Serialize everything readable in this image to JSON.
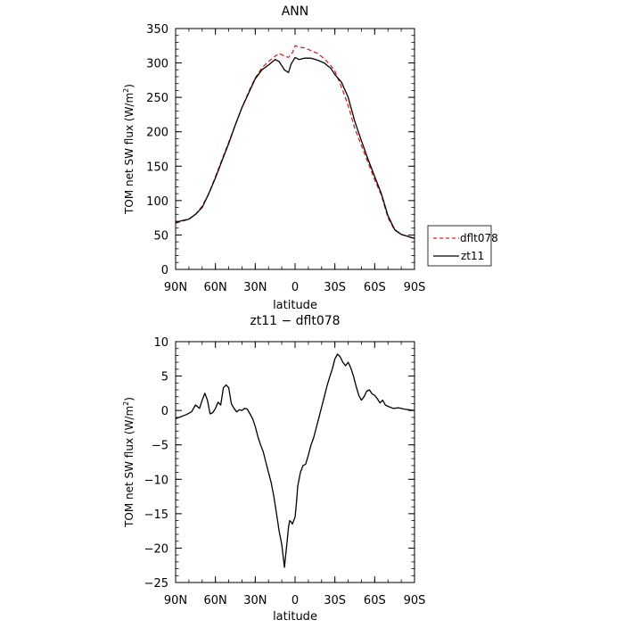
{
  "chart_data": [
    {
      "type": "line",
      "title": "ANN",
      "xlabel": "latitude",
      "ylabel": "TOM net SW flux (W/m",
      "ylabel_sup": "2",
      "ylabel_close": ")",
      "x_ticks": [
        -90,
        -60,
        -30,
        0,
        30,
        60,
        90
      ],
      "x_tick_labels": [
        "90N",
        "60N",
        "30N",
        "0",
        "30S",
        "60S",
        "90S"
      ],
      "ylim": [
        0,
        350
      ],
      "y_ticks": [
        0,
        50,
        100,
        150,
        200,
        250,
        300,
        350
      ],
      "y_tick_labels": [
        "0",
        "50",
        "100",
        "150",
        "200",
        "250",
        "300",
        "350"
      ],
      "legend_position": "right",
      "series": [
        {
          "name": "dflt078",
          "color": "#dd2222",
          "dash": "dashed",
          "x": [
            -90,
            -85,
            -80,
            -75,
            -70,
            -65,
            -60,
            -55,
            -50,
            -45,
            -40,
            -35,
            -30,
            -25,
            -20,
            -15,
            -12,
            -8,
            -5,
            -2,
            0,
            3,
            7,
            12,
            17,
            22,
            27,
            30,
            35,
            40,
            45,
            50,
            55,
            60,
            65,
            70,
            75,
            80,
            85,
            90
          ],
          "values": [
            67,
            70,
            73,
            80,
            92,
            110,
            135,
            160,
            185,
            210,
            235,
            258,
            278,
            293,
            302,
            310,
            314,
            310,
            308,
            315,
            325,
            323,
            322,
            318,
            314,
            306,
            296,
            288,
            265,
            238,
            205,
            180,
            155,
            130,
            108,
            75,
            57,
            51,
            48,
            44
          ]
        },
        {
          "name": "zt11",
          "color": "#000000",
          "dash": "solid",
          "x": [
            -90,
            -85,
            -80,
            -75,
            -70,
            -65,
            -60,
            -55,
            -50,
            -45,
            -40,
            -35,
            -30,
            -25,
            -20,
            -15,
            -12,
            -8,
            -5,
            -3,
            0,
            3,
            7,
            12,
            17,
            22,
            27,
            30,
            35,
            40,
            45,
            50,
            55,
            60,
            65,
            70,
            75,
            80,
            85,
            90
          ],
          "values": [
            68,
            71,
            73,
            80,
            90,
            110,
            133,
            158,
            183,
            210,
            235,
            256,
            277,
            290,
            297,
            305,
            302,
            290,
            286,
            298,
            308,
            305,
            307,
            307,
            304,
            300,
            292,
            283,
            272,
            250,
            215,
            187,
            160,
            135,
            110,
            78,
            58,
            51,
            48,
            45
          ]
        }
      ]
    },
    {
      "type": "line",
      "title": "zt11 − dflt078",
      "xlabel": "latitude",
      "ylabel": "TOM net SW flux (W/m",
      "ylabel_sup": "2",
      "ylabel_close": ")",
      "x_ticks": [
        -90,
        -60,
        -30,
        0,
        30,
        60,
        90
      ],
      "x_tick_labels": [
        "90N",
        "60N",
        "30N",
        "0",
        "30S",
        "60S",
        "90S"
      ],
      "ylim": [
        -25,
        10
      ],
      "y_ticks": [
        -25,
        -20,
        -15,
        -10,
        -5,
        0,
        5,
        10
      ],
      "y_tick_labels": [
        "−25",
        "−20",
        "−15",
        "−10",
        "−5",
        "0",
        "5",
        "10"
      ],
      "series": [
        {
          "name": "",
          "color": "#000000",
          "dash": "solid",
          "x": [
            -90,
            -86,
            -82,
            -78,
            -75,
            -72,
            -70,
            -68,
            -66,
            -64,
            -62,
            -60,
            -58,
            -56,
            -54,
            -52,
            -50,
            -48,
            -46,
            -44,
            -42,
            -40,
            -38,
            -36,
            -34,
            -32,
            -30,
            -28,
            -26,
            -24,
            -22,
            -20,
            -18,
            -16,
            -14,
            -12,
            -10,
            -8,
            -6,
            -5,
            -4,
            -3,
            -2,
            -1,
            0,
            1,
            2,
            3,
            4,
            6,
            8,
            10,
            12,
            14,
            16,
            18,
            20,
            22,
            24,
            26,
            28,
            30,
            32,
            34,
            36,
            38,
            40,
            42,
            44,
            46,
            48,
            50,
            52,
            54,
            56,
            58,
            60,
            62,
            64,
            66,
            68,
            70,
            74,
            78,
            82,
            86,
            90
          ],
          "values": [
            -1.2,
            -0.9,
            -0.6,
            -0.2,
            0.8,
            0.3,
            1.5,
            2.5,
            1.5,
            -0.5,
            -0.3,
            0.3,
            1.2,
            0.8,
            3.3,
            3.7,
            3.3,
            1.0,
            0.3,
            -0.2,
            0.1,
            0.0,
            0.3,
            0.2,
            -0.5,
            -1.2,
            -2.3,
            -3.8,
            -5.0,
            -6.0,
            -7.5,
            -9.0,
            -10.5,
            -12.5,
            -15.0,
            -17.5,
            -19.5,
            -22.8,
            -19.0,
            -17.0,
            -16.0,
            -16.2,
            -16.5,
            -16.0,
            -15.5,
            -13.5,
            -11.0,
            -10.0,
            -9.0,
            -8.0,
            -7.8,
            -6.5,
            -5.0,
            -4.0,
            -2.5,
            -1.0,
            0.5,
            2.0,
            3.5,
            4.8,
            6.0,
            7.5,
            8.2,
            7.8,
            7.0,
            6.5,
            7.0,
            6.2,
            5.0,
            3.5,
            2.2,
            1.5,
            2.0,
            2.8,
            3.0,
            2.4,
            2.2,
            1.7,
            1.1,
            1.5,
            0.8,
            0.6,
            0.3,
            0.4,
            0.2,
            0.1,
            0.0
          ]
        }
      ]
    }
  ]
}
